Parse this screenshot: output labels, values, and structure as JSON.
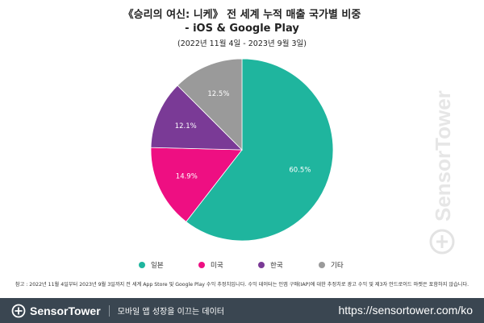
{
  "chart_data": {
    "type": "pie",
    "title_line1": "《승리의 여신: 니케》 전 세계 누적 매출 국가별 비중",
    "title_line2": "- iOS & Google Play",
    "subtitle": "(2022년 11월 4일 - 2023년 9월 3일)",
    "slices": [
      {
        "label": "일본",
        "value": 60.5,
        "value_label": "60.5%",
        "color": "#1fb59e"
      },
      {
        "label": "미국",
        "value": 14.9,
        "value_label": "14.9%",
        "color": "#ee0f82"
      },
      {
        "label": "한국",
        "value": 12.1,
        "value_label": "12.1%",
        "color": "#7a3a96"
      },
      {
        "label": "기타",
        "value": 12.5,
        "value_label": "12.5%",
        "color": "#9a9a9a"
      }
    ],
    "start_angle_deg": 0,
    "direction": "clockwise",
    "legend_position": "bottom"
  },
  "note": "참고 : 2022년 11월 4일부터 2023년 9월 3일까지 전 세계 App Store 및 Google Play 수익 추정치입니다. 수익 데이터는 인앱 구매(IAP)에 대한 추정치로 광고 수익 및 제3자 안드로이드 마켓은 포함하지 않습니다.",
  "watermark": {
    "text": "SensorTower",
    "icon": "sensortower-logo-icon"
  },
  "footer": {
    "brand": "SensorTower",
    "tagline": "모바일 앱 성장을 이끄는 데이터",
    "url": "https://sensortower.com/ko",
    "background": "#3a4651",
    "logo_icon": "sensortower-logo-icon"
  }
}
